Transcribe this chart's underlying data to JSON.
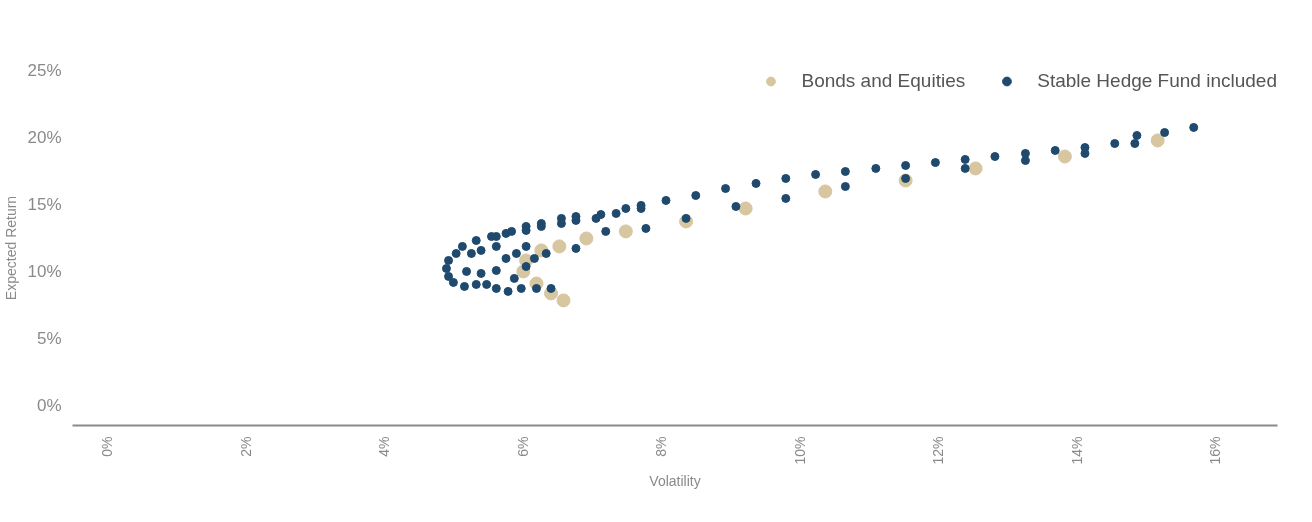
{
  "chart_data": {
    "type": "scatter",
    "xlabel": "Volatility",
    "ylabel": "Expected Return",
    "legend": "top right",
    "marker": "circle",
    "grid": false,
    "xlim": [
      -0.5,
      16.9
    ],
    "ylim": [
      -1.5,
      25
    ],
    "xticks": [
      {
        "value": 0,
        "label": "0%"
      },
      {
        "value": 2,
        "label": "2%"
      },
      {
        "value": 4,
        "label": "4%"
      },
      {
        "value": 6,
        "label": "6%"
      },
      {
        "value": 8,
        "label": "8%"
      },
      {
        "value": 10,
        "label": "10%"
      },
      {
        "value": 12,
        "label": "12%"
      },
      {
        "value": 14,
        "label": "14%"
      },
      {
        "value": 16,
        "label": "16%"
      }
    ],
    "yticks": [
      {
        "value": 0,
        "label": "0%"
      },
      {
        "value": 5,
        "label": "5%"
      },
      {
        "value": 10,
        "label": "10%"
      },
      {
        "value": 15,
        "label": "15%"
      },
      {
        "value": 20,
        "label": "20%"
      },
      {
        "value": 25,
        "label": "25%"
      }
    ],
    "series": [
      {
        "name": "Bonds and Equities",
        "color": "#d8c6a0",
        "x": [
          6.59,
          6.41,
          6.2,
          6.01,
          6.05,
          6.27,
          6.53,
          6.92,
          7.49,
          8.36,
          9.22,
          10.37,
          11.53,
          12.54,
          13.83,
          15.17
        ],
        "values": [
          7.84,
          8.36,
          9.1,
          10.0,
          10.82,
          11.57,
          11.87,
          12.46,
          12.99,
          13.73,
          14.7,
          15.97,
          16.79,
          17.69,
          18.58,
          19.78
        ]
      },
      {
        "name": "Stable Hedge Fund included",
        "color": "#1f4a6e",
        "x": [
          4.93,
          4.9,
          4.93,
          5.0,
          5.04,
          5.13,
          5.33,
          5.55,
          5.76,
          5.16,
          5.33,
          5.48,
          5.62,
          5.79,
          5.98,
          6.2,
          6.41,
          5.26,
          5.4,
          5.62,
          5.19,
          5.4,
          5.62,
          5.76,
          5.91,
          6.05,
          5.88,
          6.05,
          6.17,
          5.62,
          5.84,
          6.05,
          6.27,
          6.56,
          6.77,
          7.13,
          7.49,
          7.71,
          6.05,
          6.27,
          6.56,
          6.77,
          7.06,
          7.35,
          7.71,
          8.07,
          8.5,
          8.93,
          9.37,
          9.8,
          10.23,
          10.66,
          11.1,
          11.53,
          11.96,
          12.39,
          12.82,
          13.26,
          13.69,
          14.12,
          14.55,
          14.87,
          15.27,
          15.69,
          6.34,
          6.77,
          7.2,
          7.78,
          8.36,
          9.08,
          9.8,
          10.66,
          11.53,
          12.39,
          13.26,
          14.12,
          14.84
        ],
        "values": [
          10.82,
          10.22,
          9.63,
          9.18,
          11.34,
          11.87,
          12.31,
          12.61,
          12.84,
          8.88,
          9.03,
          9.03,
          8.73,
          8.51,
          8.73,
          8.73,
          8.73,
          11.34,
          11.57,
          11.87,
          10.0,
          9.85,
          10.07,
          10.97,
          11.34,
          11.87,
          9.48,
          10.37,
          10.97,
          12.61,
          12.99,
          13.36,
          13.58,
          13.96,
          14.1,
          14.25,
          14.7,
          14.93,
          13.06,
          13.36,
          13.58,
          13.81,
          13.96,
          14.33,
          14.7,
          15.3,
          15.67,
          16.19,
          16.57,
          16.94,
          17.24,
          17.46,
          17.69,
          17.91,
          18.13,
          18.36,
          18.58,
          18.81,
          19.03,
          19.25,
          19.55,
          20.15,
          20.37,
          20.75,
          11.34,
          11.72,
          12.99,
          13.21,
          13.96,
          14.85,
          15.45,
          16.34,
          16.94,
          17.69,
          18.28,
          18.81,
          19.55
        ]
      }
    ]
  }
}
